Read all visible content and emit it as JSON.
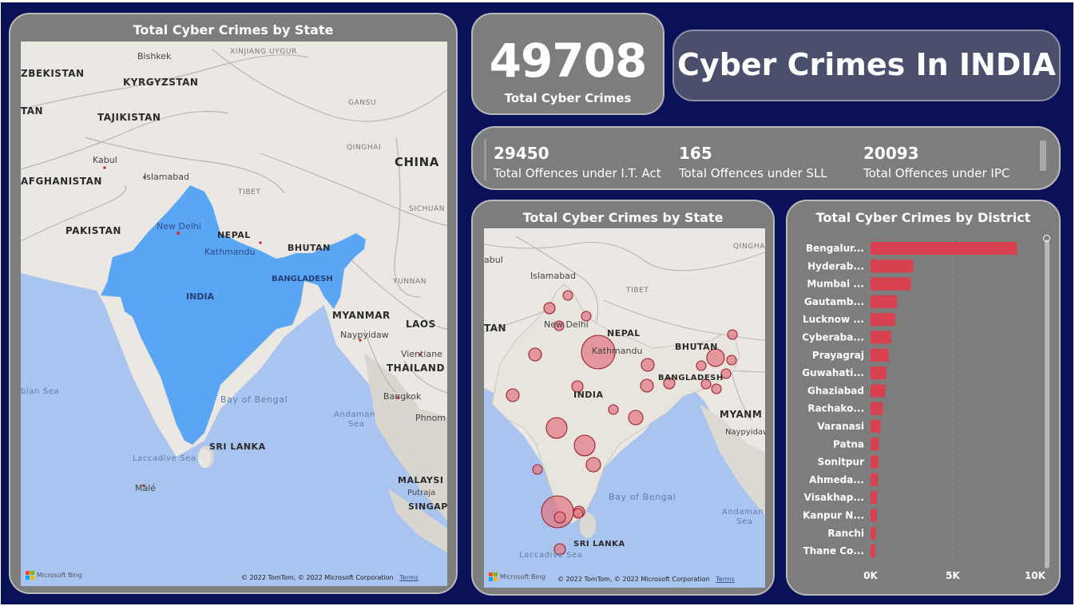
{
  "dashboard": {
    "title": "Cyber Crimes In INDIA",
    "kpi": {
      "value": "49708",
      "label": "Total Cyber Crimes"
    },
    "offences": [
      {
        "value": "29450",
        "label": "Total Offences under I.T. Act"
      },
      {
        "value": "165",
        "label": "Total Offences under SLL"
      },
      {
        "value": "20093",
        "label": "Total Offences under IPC"
      }
    ]
  },
  "map_left": {
    "title": "Total Cyber Crimes by State",
    "labels": {
      "bishkek": "Bishkek",
      "xinjiang": "XINJIANG UYGUR",
      "uzbekistan": "ZBEKISTAN",
      "kyrgyzstan": "KYRGYZSTAN",
      "tan": "TAN",
      "gansu": "GANSU",
      "tajikistan": "TAJIKISTAN",
      "qinghai": "QINGHAI",
      "kabul": "Kabul",
      "china": "CHINA",
      "islamabad": "Islamabad",
      "afghanistan": "AFGHANISTAN",
      "tibet": "TIBET",
      "sichuan": "SICHUAN",
      "pakistan": "PAKISTAN",
      "newdelhi": "New Delhi",
      "nepal": "NEPAL",
      "bhutan": "BHUTAN",
      "kathmandu": "Kathmandu",
      "bangladesh": "BANGLADESH",
      "yunnan": "YUNNAN",
      "india": "INDIA",
      "myanmar": "MYANMAR",
      "naypyidaw": "Naypyidaw",
      "laos": "LAOS",
      "vientiane": "Vientiane",
      "thailand": "THAILAND",
      "sea": "bian Sea",
      "bay": "Bay of Bengal",
      "bangkok": "Bangkok",
      "andaman": "Andaman",
      "andaman_sea": "Sea",
      "phnom": "Phnom",
      "srilanka": "SRI LANKA",
      "laccadive": "Laccadive Sea",
      "male": "Malé",
      "malaysia": "MALAYSI",
      "putrajaya": "Putraja",
      "singapore": "SINGAP"
    },
    "attribution": "© 2022 TomTom, © 2022 Microsoft Corporation",
    "terms": "Terms",
    "bing": "Microsoft Bing"
  },
  "map_right": {
    "title": "Total Cyber Crimes by State",
    "labels": {
      "kabul": "abul",
      "qinghai": "QINGHA",
      "islamabad": "Islamabad",
      "tibet": "TIBET",
      "tan": "TAN",
      "newdelhi": "New Delhi",
      "nepal": "NEPAL",
      "kathmandu": "Kathmandu",
      "bhutan": "BHUTAN",
      "bangladesh": "BANGLADESH",
      "india": "INDIA",
      "myanmar": "MYANM",
      "naypyidaw": "Naypyidaw",
      "bay": "Bay of Bengal",
      "andaman": "Andaman",
      "andaman_sea": "Sea",
      "srilanka": "SRI LANKA",
      "laccadive": "Laccadive Sea"
    },
    "attribution": "© 2022 TomTom, © 2022 Microsoft Corporation",
    "terms": "Terms",
    "bing": "Microsoft Bing"
  },
  "district_chart": {
    "title": "Total Cyber Crimes by District"
  },
  "chart_data": {
    "type": "bar",
    "orientation": "horizontal",
    "title": "Total Cyber Crimes by District",
    "categories": [
      "Bengalur...",
      "Hyderab...",
      "Mumbai ...",
      "Gautamb...",
      "Lucknow ...",
      "Cyberaba...",
      "Prayagraj",
      "Guwahati...",
      "Ghaziabad",
      "Rachako...",
      "Varanasi",
      "Patna",
      "Sonitpur",
      "Ahmeda...",
      "Visakhap...",
      "Kanpur N...",
      "Ranchi",
      "Thane Co..."
    ],
    "values": [
      8900,
      2600,
      2450,
      1600,
      1500,
      1250,
      1100,
      950,
      900,
      750,
      600,
      500,
      480,
      450,
      400,
      380,
      320,
      300
    ],
    "xlim": [
      0,
      10000
    ],
    "xticks": [
      "0K",
      "5K",
      "10K"
    ],
    "bar_color": "#d9414e",
    "grid": true
  }
}
